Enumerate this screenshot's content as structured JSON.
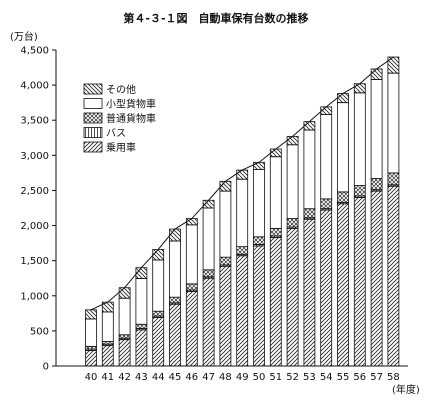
{
  "chart_data": {
    "type": "bar",
    "stacked": true,
    "title": "第４-３-１図　自動車保有台数の推移",
    "unit_label": "(万台)",
    "xlabel": "(年度)",
    "ylim": [
      0,
      4500
    ],
    "yticks": [
      0,
      500,
      1000,
      1500,
      2000,
      2500,
      3000,
      3500,
      4000,
      4500
    ],
    "ytick_labels": [
      "0",
      "500",
      "1,000",
      "1,500",
      "2,000",
      "2,500",
      "3,000",
      "3,500",
      "4,000",
      "4,500"
    ],
    "categories": [
      "40",
      "41",
      "42",
      "43",
      "44",
      "45",
      "46",
      "47",
      "48",
      "49",
      "50",
      "51",
      "52",
      "53",
      "54",
      "55",
      "56",
      "57",
      "58"
    ],
    "series": [
      {
        "name": "乗用車",
        "pattern": "diagonal",
        "values": [
          220,
          290,
          375,
          515,
          690,
          880,
          1060,
          1250,
          1420,
          1570,
          1710,
          1830,
          1960,
          2090,
          2220,
          2310,
          2400,
          2490,
          2560
        ]
      },
      {
        "name": "バス",
        "pattern": "vertical",
        "values": [
          20,
          20,
          20,
          20,
          20,
          20,
          20,
          20,
          20,
          20,
          20,
          20,
          20,
          20,
          20,
          20,
          20,
          20,
          20
        ]
      },
      {
        "name": "普通貨物車",
        "pattern": "crosshatch",
        "values": [
          40,
          40,
          50,
          60,
          70,
          80,
          90,
          100,
          110,
          110,
          110,
          110,
          120,
          130,
          140,
          150,
          150,
          160,
          170
        ]
      },
      {
        "name": "小型貨物車",
        "pattern": "blank",
        "values": [
          390,
          420,
          520,
          650,
          730,
          800,
          840,
          880,
          940,
          960,
          960,
          1020,
          1050,
          1120,
          1200,
          1270,
          1320,
          1410,
          1420
        ]
      },
      {
        "name": "その他",
        "pattern": "reverse-diagonal",
        "values": [
          130,
          140,
          150,
          155,
          150,
          170,
          90,
          110,
          140,
          130,
          100,
          110,
          120,
          120,
          110,
          130,
          130,
          150,
          230
        ]
      }
    ],
    "legend_order": [
      "その他",
      "小型貨物車",
      "普通貨物車",
      "バス",
      "乗用車"
    ],
    "legend_position": "top-left",
    "line_over_totals": true,
    "grid": false
  }
}
